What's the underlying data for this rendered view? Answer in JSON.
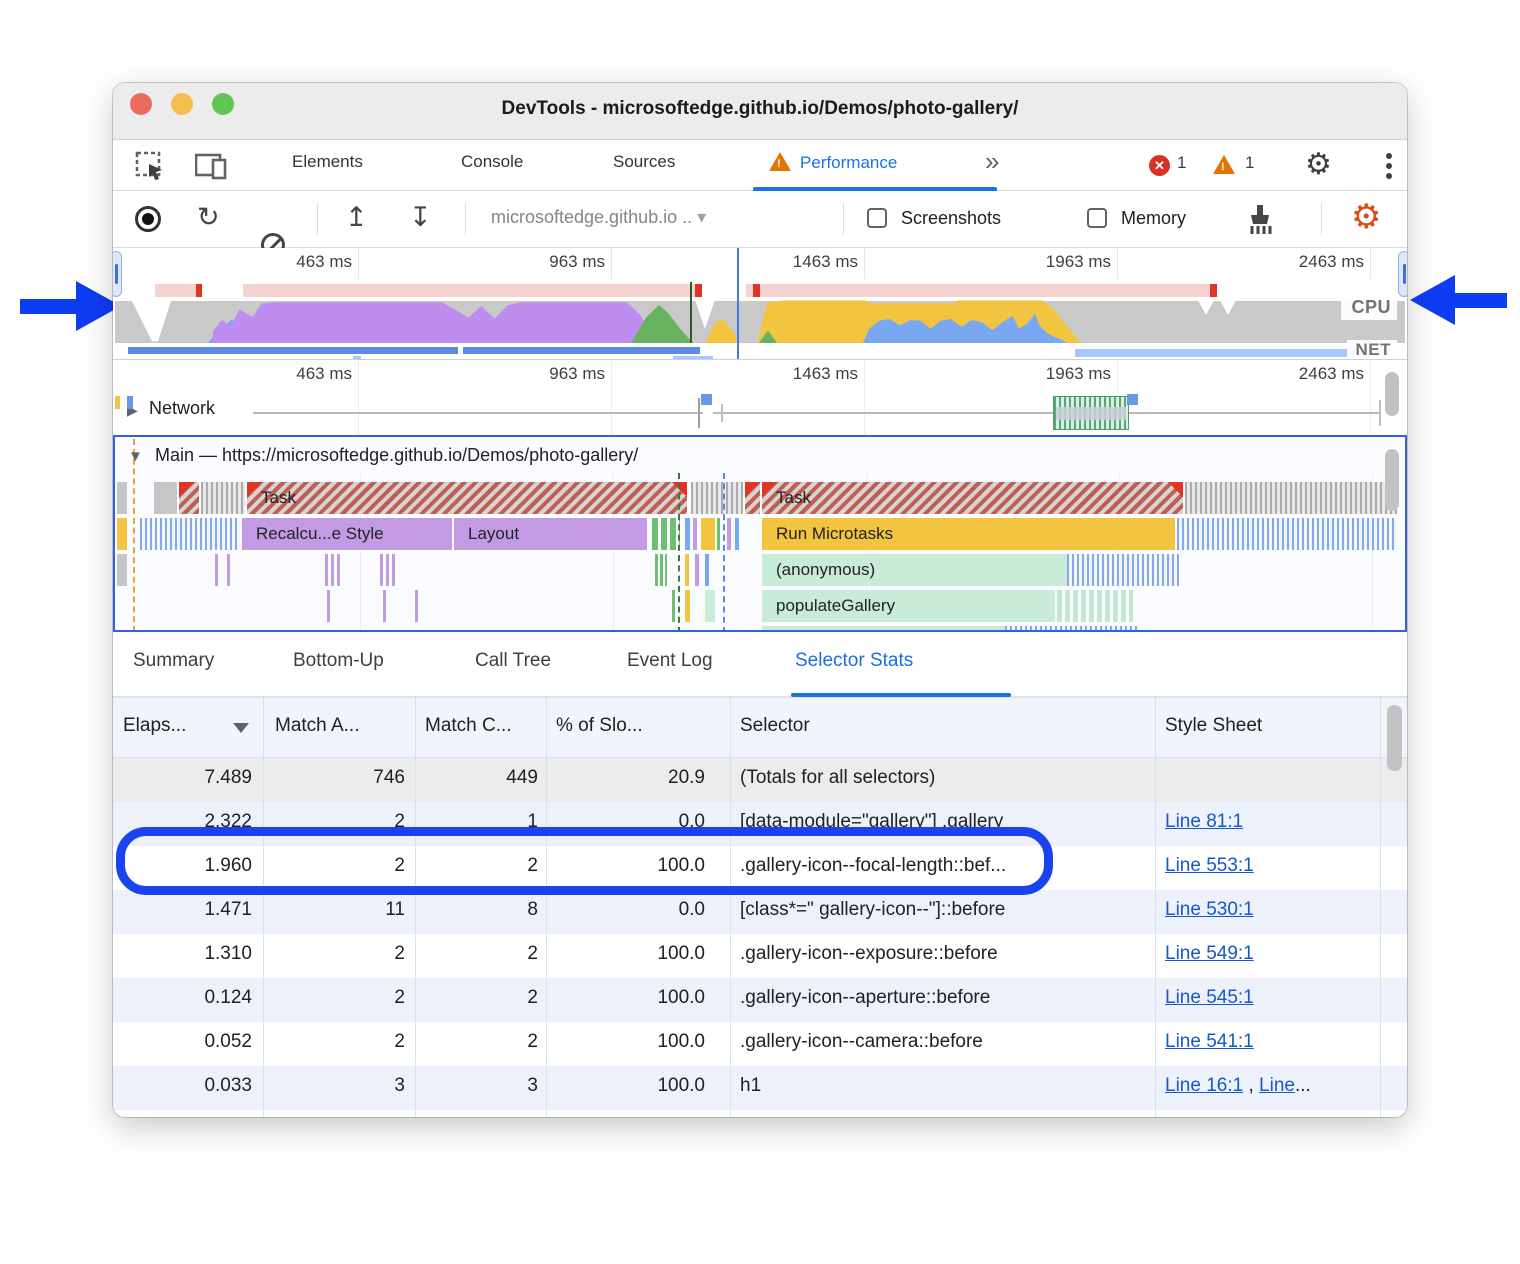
{
  "window_title": "DevTools - microsoftedge.github.io/Demos/photo-gallery/",
  "tabbar": {
    "tabs": [
      {
        "label": "Elements"
      },
      {
        "label": "Console"
      },
      {
        "label": "Sources"
      },
      {
        "label": "Performance"
      }
    ],
    "more_tabs_glyph": "»",
    "error_count": "1",
    "warning_count": "1"
  },
  "toolbar": {
    "url_dropdown": "microsoftedge.github.io ..",
    "screenshots_label": "Screenshots",
    "memory_label": "Memory"
  },
  "overview": {
    "time_labels": [
      "463 ms",
      "963 ms",
      "1463 ms",
      "1963 ms",
      "2463 ms"
    ],
    "cpu_label": "CPU",
    "net_label": "NET"
  },
  "network_track": {
    "time_labels": [
      "463 ms",
      "963 ms",
      "1463 ms",
      "1963 ms",
      "2463 ms"
    ],
    "label": "Network"
  },
  "main_track": {
    "label": "Main — https://microsoftedge.github.io/Demos/photo-gallery/",
    "frames": {
      "task1": "Task",
      "task2": "Task",
      "recalc": "Recalcu...e Style",
      "layout": "Layout",
      "microtasks": "Run Microtasks",
      "anonymous": "(anonymous)",
      "populate": "populateGallery"
    }
  },
  "detail_tabs": [
    {
      "label": "Summary"
    },
    {
      "label": "Bottom-Up"
    },
    {
      "label": "Call Tree"
    },
    {
      "label": "Event Log"
    },
    {
      "label": "Selector Stats"
    }
  ],
  "selector_stats": {
    "columns": [
      "Elaps...",
      "Match A...",
      "Match C...",
      "% of Slo...",
      "Selector",
      "Style Sheet"
    ],
    "rows": [
      {
        "elapsed": "7.489",
        "match_attempts": "746",
        "match_count": "449",
        "slow_pct": "20.9",
        "selector": "(Totals for all selectors)",
        "links": [],
        "suffix": "",
        "totals": true
      },
      {
        "elapsed": "2.322",
        "match_attempts": "2",
        "match_count": "1",
        "slow_pct": "0.0",
        "selector": "[data-module=\"gallery\"] .gallery",
        "links": [
          "Line 81:1"
        ],
        "suffix": ""
      },
      {
        "elapsed": "1.960",
        "match_attempts": "2",
        "match_count": "2",
        "slow_pct": "100.0",
        "selector": ".gallery-icon--focal-length::bef...",
        "links": [
          "Line 553:1"
        ],
        "suffix": ""
      },
      {
        "elapsed": "1.471",
        "match_attempts": "11",
        "match_count": "8",
        "slow_pct": "0.0",
        "selector": "[class*=\" gallery-icon--\"]::before",
        "links": [
          "Line 530:1"
        ],
        "suffix": ""
      },
      {
        "elapsed": "1.310",
        "match_attempts": "2",
        "match_count": "2",
        "slow_pct": "100.0",
        "selector": ".gallery-icon--exposure::before",
        "links": [
          "Line 549:1"
        ],
        "suffix": ""
      },
      {
        "elapsed": "0.124",
        "match_attempts": "2",
        "match_count": "2",
        "slow_pct": "100.0",
        "selector": ".gallery-icon--aperture::before",
        "links": [
          "Line 545:1"
        ],
        "suffix": ""
      },
      {
        "elapsed": "0.052",
        "match_attempts": "2",
        "match_count": "2",
        "slow_pct": "100.0",
        "selector": ".gallery-icon--camera::before",
        "links": [
          "Line 541:1"
        ],
        "suffix": ""
      },
      {
        "elapsed": "0.033",
        "match_attempts": "3",
        "match_count": "3",
        "slow_pct": "100.0",
        "selector": "h1",
        "links": [
          "Line 16:1",
          "Line"
        ],
        "suffix": "..."
      }
    ]
  },
  "colors": {
    "accent_blue": "#1a73e8",
    "annotation_blue": "#0d3df2",
    "error_red": "#d93025",
    "warning_orange": "#e37400",
    "cpu_scripting_yellow": "#f2c440",
    "cpu_rendering_purple": "#c39be5",
    "cpu_painting_green": "#6fbf73",
    "cpu_system_gray": "#c9c9c9",
    "cpu_loading_blue": "#7aa7f2"
  }
}
